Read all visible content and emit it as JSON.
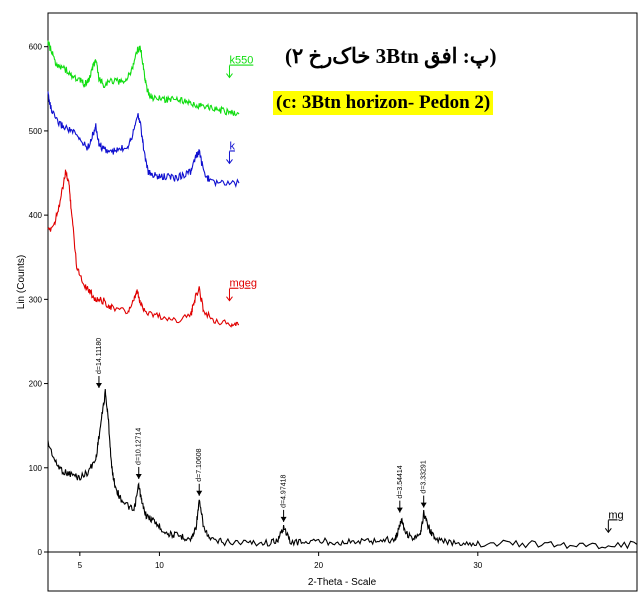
{
  "chart_data": {
    "type": "line",
    "title_fa": "(پ: افق 3Btn خاک‌رخ ۲)",
    "title_en": "(c: 3Btn horizon- Pedon 2)",
    "xlabel": "2-Theta - Scale",
    "ylabel": "Lin (Counts)",
    "xlim": [
      3,
      40
    ],
    "ylim": [
      0,
      640
    ],
    "xticks": [
      5,
      10,
      20,
      30
    ],
    "yticks": [
      0,
      100,
      200,
      300,
      400,
      500,
      600
    ],
    "series": [
      {
        "name": "mg",
        "color": "#000000",
        "x": [
          3,
          3.5,
          4.0,
          4.5,
          5.0,
          5.5,
          6.0,
          6.3,
          6.6,
          6.8,
          7.0,
          7.2,
          7.5,
          8.0,
          8.4,
          8.7,
          8.9,
          9.2,
          9.6,
          10.0,
          10.5,
          11.0,
          11.5,
          12.0,
          12.3,
          12.5,
          12.8,
          13.2,
          14.0,
          15.0,
          16.0,
          17.0,
          17.5,
          17.8,
          18.2,
          19.0,
          20.0,
          21.0,
          22.0,
          23.0,
          24.0,
          24.8,
          25.0,
          25.2,
          25.5,
          26.0,
          26.4,
          26.6,
          26.9,
          27.3,
          28.0,
          29.0,
          30.0,
          32.0,
          34.0,
          36.0,
          38.0,
          40.0
        ],
        "y": [
          130,
          105,
          95,
          92,
          88,
          95,
          110,
          150,
          190,
          155,
          100,
          80,
          65,
          55,
          48,
          80,
          58,
          42,
          38,
          30,
          22,
          20,
          18,
          15,
          30,
          60,
          28,
          14,
          12,
          12,
          11,
          11,
          16,
          30,
          12,
          12,
          13,
          12,
          12,
          13,
          14,
          15,
          25,
          40,
          22,
          16,
          20,
          46,
          30,
          15,
          12,
          11,
          10,
          10,
          9,
          8,
          8,
          9
        ]
      },
      {
        "name": "mgeg",
        "color": "#e00000",
        "x": [
          3,
          3.4,
          3.8,
          4.1,
          4.3,
          4.5,
          4.8,
          5.2,
          5.6,
          6.0,
          6.5,
          7.0,
          8.0,
          8.4,
          8.6,
          8.8,
          9.2,
          10.0,
          11.0,
          12.0,
          12.2,
          12.5,
          12.8,
          13.5,
          14.5,
          15.0
        ],
        "y": [
          380,
          390,
          420,
          450,
          440,
          400,
          340,
          320,
          310,
          300,
          298,
          290,
          285,
          298,
          310,
          295,
          285,
          280,
          275,
          282,
          300,
          312,
          285,
          275,
          270,
          270
        ]
      },
      {
        "name": "k",
        "color": "#1010d0",
        "x": [
          3,
          3.2,
          3.6,
          4.0,
          4.5,
          5.0,
          5.5,
          5.8,
          6.0,
          6.2,
          6.5,
          7.0,
          7.5,
          8.0,
          8.3,
          8.6,
          8.8,
          9.0,
          9.3,
          9.6,
          10.0,
          10.5,
          11.0,
          11.5,
          12.0,
          12.3,
          12.5,
          12.8,
          13.2,
          14.0,
          15.0
        ],
        "y": [
          545,
          525,
          510,
          505,
          500,
          490,
          480,
          495,
          505,
          485,
          478,
          475,
          478,
          482,
          495,
          520,
          510,
          480,
          450,
          448,
          445,
          446,
          444,
          448,
          452,
          470,
          475,
          450,
          440,
          438,
          438
        ]
      },
      {
        "name": "k550",
        "color": "#10dd10",
        "x": [
          3,
          3.2,
          3.5,
          4.0,
          4.5,
          5.0,
          5.3,
          5.6,
          5.8,
          6.0,
          6.2,
          6.5,
          7.0,
          7.5,
          8.0,
          8.3,
          8.6,
          8.8,
          9.0,
          9.2,
          9.5,
          10.0,
          10.5,
          11.0,
          11.5,
          12.0,
          12.5,
          13.0,
          13.5,
          14.0,
          14.5,
          15.0
        ],
        "y": [
          605,
          595,
          580,
          575,
          565,
          560,
          555,
          562,
          575,
          585,
          562,
          555,
          560,
          558,
          562,
          575,
          595,
          600,
          575,
          550,
          540,
          538,
          537,
          540,
          535,
          532,
          530,
          528,
          526,
          524,
          522,
          520
        ]
      }
    ],
    "peaks": [
      {
        "label": "d=14.11180",
        "x": 6.2,
        "y": 190
      },
      {
        "label": "d=10.12714",
        "x": 8.7,
        "y": 82
      },
      {
        "label": "d=7.10608",
        "x": 12.5,
        "y": 62
      },
      {
        "label": "d=4.97418",
        "x": 17.8,
        "y": 31
      },
      {
        "label": "d=3.54414",
        "x": 25.1,
        "y": 42
      },
      {
        "label": "d=3.33291",
        "x": 26.6,
        "y": 48
      }
    ],
    "series_tags": [
      {
        "text": "k550",
        "color": "#10dd10",
        "x": 14.4,
        "y": 580
      },
      {
        "text": "k",
        "color": "#1010d0",
        "x": 14.4,
        "y": 478
      },
      {
        "text": "mgeg",
        "color": "#e00000",
        "x": 14.4,
        "y": 315
      },
      {
        "text": "mg",
        "color": "#000000",
        "x": 38.2,
        "y": 40
      }
    ]
  }
}
